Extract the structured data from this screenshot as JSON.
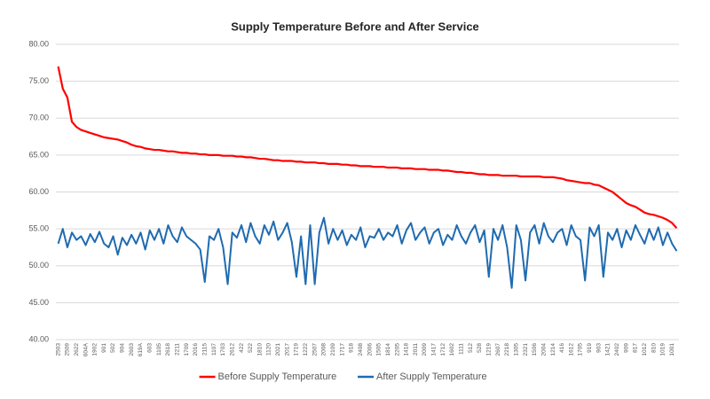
{
  "chart_data": {
    "type": "line",
    "title": "Supply Temperature Before and After Service",
    "categories": [
      "2503",
      null,
      "2509",
      null,
      "2622",
      null,
      "604A",
      null,
      "1902",
      null,
      "901",
      null,
      "502",
      null,
      "904",
      null,
      "2603",
      null,
      "619A",
      null,
      "603",
      null,
      "1105",
      null,
      "2618",
      null,
      "2211",
      null,
      "1709",
      null,
      "2016",
      null,
      "2115",
      null,
      "1107",
      null,
      "1703",
      null,
      "2612",
      null,
      "422",
      null,
      "522",
      null,
      "1810",
      null,
      "1120",
      null,
      "2021",
      null,
      "2017",
      null,
      "1719",
      null,
      "1222",
      null,
      "2507",
      null,
      "2008",
      null,
      "2109",
      null,
      "1717",
      null,
      "918",
      null,
      "2408",
      null,
      "2006",
      null,
      "1505",
      null,
      "1814",
      null,
      "2205",
      null,
      "1418",
      null,
      "2011",
      null,
      "2009",
      null,
      "1417",
      null,
      "1712",
      null,
      "1602",
      null,
      "1111",
      null,
      "512",
      null,
      "528",
      null,
      "1219",
      null,
      "2607",
      null,
      "2218",
      null,
      "1305",
      null,
      "2321",
      null,
      "1506",
      null,
      "2004",
      null,
      "1214",
      null,
      "416",
      null,
      "1612",
      null,
      "1705",
      null,
      "919",
      null,
      "903",
      null,
      "1421",
      null,
      "2402",
      null,
      "909",
      null,
      "817",
      null,
      "1012",
      null,
      "810",
      null,
      "1019",
      null,
      "1001",
      null
    ],
    "series": [
      {
        "name": "Before Supply Temperature",
        "color": "#ff0000",
        "values": [
          77,
          74,
          72.8,
          69.5,
          68.8,
          68.4,
          68.2,
          68,
          67.8,
          67.6,
          67.4,
          67.3,
          67.2,
          67.1,
          66.9,
          66.7,
          66.4,
          66.2,
          66.1,
          65.9,
          65.8,
          65.7,
          65.7,
          65.6,
          65.5,
          65.5,
          65.4,
          65.3,
          65.3,
          65.2,
          65.2,
          65.1,
          65.1,
          65.0,
          65.0,
          65.0,
          64.9,
          64.9,
          64.9,
          64.8,
          64.8,
          64.7,
          64.7,
          64.6,
          64.5,
          64.5,
          64.4,
          64.3,
          64.3,
          64.2,
          64.2,
          64.2,
          64.1,
          64.1,
          64.0,
          64.0,
          64.0,
          63.9,
          63.9,
          63.8,
          63.8,
          63.8,
          63.7,
          63.7,
          63.6,
          63.6,
          63.5,
          63.5,
          63.5,
          63.4,
          63.4,
          63.4,
          63.3,
          63.3,
          63.3,
          63.2,
          63.2,
          63.2,
          63.1,
          63.1,
          63.1,
          63.0,
          63.0,
          63.0,
          62.9,
          62.9,
          62.8,
          62.7,
          62.7,
          62.6,
          62.6,
          62.5,
          62.4,
          62.4,
          62.3,
          62.3,
          62.3,
          62.2,
          62.2,
          62.2,
          62.2,
          62.1,
          62.1,
          62.1,
          62.1,
          62.1,
          62.0,
          62.0,
          62.0,
          61.9,
          61.8,
          61.6,
          61.5,
          61.4,
          61.3,
          61.2,
          61.2,
          61.0,
          60.9,
          60.6,
          60.3,
          60.0,
          59.5,
          59.0,
          58.5,
          58.2,
          58.0,
          57.6,
          57.2,
          57.0,
          56.9,
          56.7,
          56.5,
          56.2,
          55.8,
          55.1
        ]
      },
      {
        "name": "After Supply Temperature",
        "color": "#1f6bb0",
        "values": [
          53,
          55,
          52.5,
          54.5,
          53.5,
          54,
          52.8,
          54.3,
          53.2,
          54.6,
          53,
          52.5,
          54,
          51.5,
          53.8,
          52.8,
          54.2,
          53,
          54.5,
          52.2,
          54.8,
          53.5,
          55,
          53,
          55.5,
          54,
          53.2,
          55.2,
          54,
          53.5,
          53,
          52.2,
          47.8,
          54,
          53.5,
          55,
          52.5,
          47.5,
          54.5,
          53.8,
          55.5,
          53.2,
          55.8,
          54,
          53,
          55.5,
          54.2,
          56,
          53.5,
          54.5,
          55.8,
          53.2,
          48.5,
          54,
          47.5,
          55.5,
          47.5,
          54.5,
          56.5,
          53,
          55,
          53.5,
          54.8,
          52.8,
          54.2,
          53.5,
          55.2,
          52.5,
          54,
          53.8,
          55,
          53.5,
          54.5,
          54,
          55.5,
          53,
          54.8,
          55.8,
          53.5,
          54.5,
          55.2,
          53,
          54.5,
          55,
          52.8,
          54.2,
          53.5,
          55.5,
          54,
          53,
          54.5,
          55.5,
          53.2,
          54.8,
          48.5,
          55,
          53.5,
          55.5,
          52.5,
          47,
          55.5,
          53.5,
          48,
          54.5,
          55.5,
          53,
          55.8,
          54,
          53.2,
          54.5,
          55,
          52.8,
          55.5,
          54,
          53.5,
          48,
          55.2,
          54,
          55.5,
          48.5,
          54.5,
          53.5,
          55,
          52.5,
          54.8,
          53.5,
          55.5,
          54.2,
          53,
          55,
          53.5,
          55.2,
          52.8,
          54.5,
          53,
          52
        ]
      }
    ],
    "ylim": [
      40,
      80
    ],
    "yticks": [
      {
        "value": 40,
        "label": "40.00"
      },
      {
        "value": 45,
        "label": "45.00"
      },
      {
        "value": 50,
        "label": "50.00"
      },
      {
        "value": 55,
        "label": "55.00"
      },
      {
        "value": 60,
        "label": "60.00"
      },
      {
        "value": 65,
        "label": "65.00"
      },
      {
        "value": 70,
        "label": "70.00"
      },
      {
        "value": 75,
        "label": "75.00"
      },
      {
        "value": 80,
        "label": "80.00"
      }
    ],
    "grid": true,
    "legend": "bottom"
  }
}
